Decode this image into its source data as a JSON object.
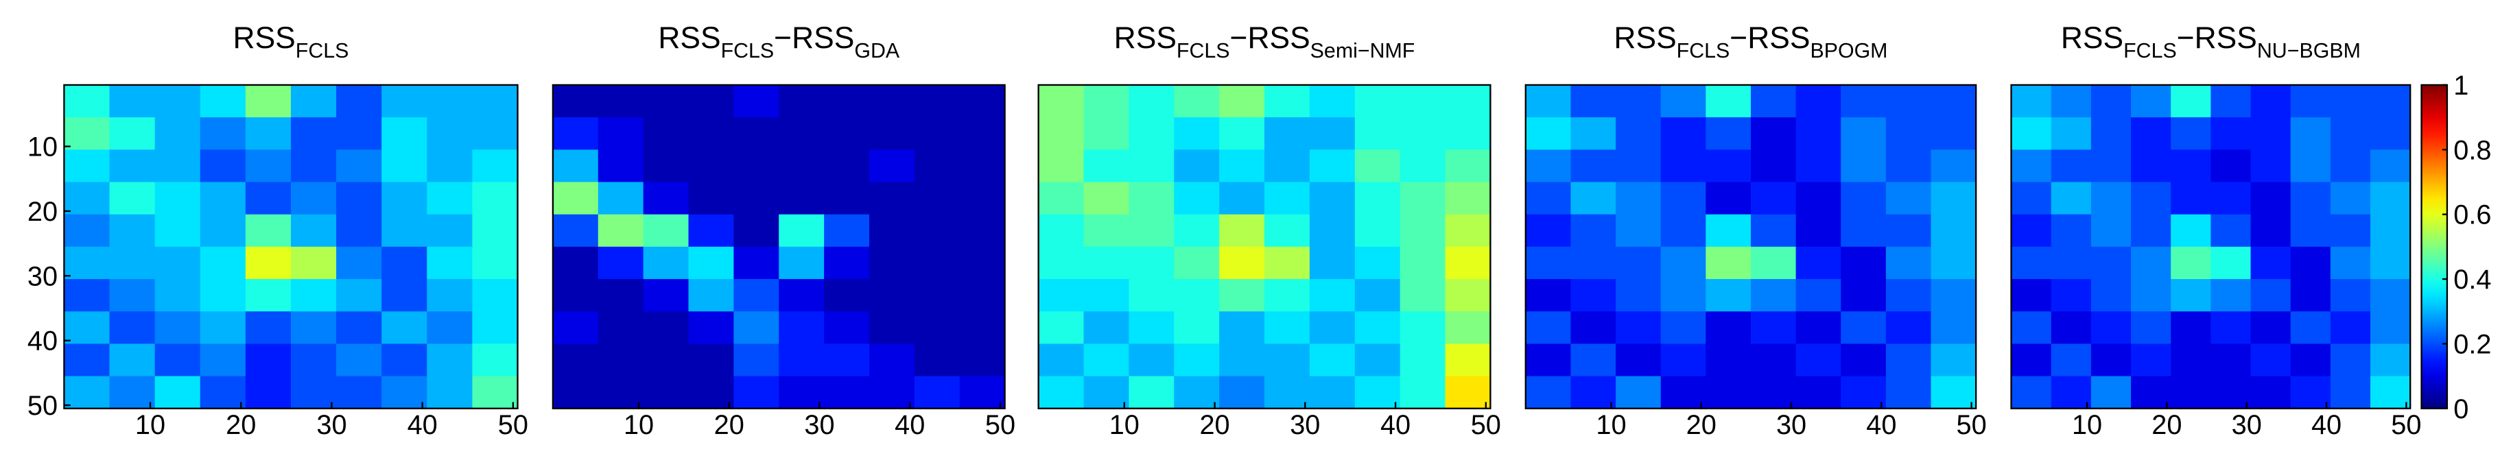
{
  "chart_data": [
    {
      "type": "heatmap",
      "title": [
        [
          "RSS",
          "FCLS"
        ]
      ],
      "x_bins": [
        0.5,
        5.5,
        10.5,
        15.5,
        20.5,
        25.5,
        30.5,
        35.5,
        40.5,
        45.5,
        50.5
      ],
      "y_bins": [
        0.5,
        5.5,
        10.5,
        15.5,
        20.5,
        25.5,
        30.5,
        35.5,
        40.5,
        45.5,
        50.5
      ],
      "z": [
        [
          0.4,
          0.3,
          0.3,
          0.35,
          0.5,
          0.3,
          0.2,
          0.3,
          0.3,
          0.3
        ],
        [
          0.45,
          0.4,
          0.3,
          0.25,
          0.3,
          0.2,
          0.2,
          0.35,
          0.3,
          0.3
        ],
        [
          0.35,
          0.3,
          0.3,
          0.2,
          0.25,
          0.2,
          0.25,
          0.35,
          0.3,
          0.35
        ],
        [
          0.3,
          0.4,
          0.35,
          0.3,
          0.2,
          0.25,
          0.2,
          0.3,
          0.35,
          0.4
        ],
        [
          0.25,
          0.3,
          0.35,
          0.3,
          0.45,
          0.3,
          0.2,
          0.3,
          0.3,
          0.4
        ],
        [
          0.3,
          0.3,
          0.3,
          0.35,
          0.6,
          0.55,
          0.25,
          0.2,
          0.35,
          0.4
        ],
        [
          0.2,
          0.25,
          0.3,
          0.35,
          0.4,
          0.35,
          0.3,
          0.2,
          0.3,
          0.35
        ],
        [
          0.3,
          0.2,
          0.25,
          0.3,
          0.2,
          0.25,
          0.2,
          0.3,
          0.25,
          0.35
        ],
        [
          0.2,
          0.3,
          0.2,
          0.25,
          0.15,
          0.2,
          0.25,
          0.2,
          0.3,
          0.4
        ],
        [
          0.3,
          0.25,
          0.35,
          0.2,
          0.15,
          0.2,
          0.2,
          0.25,
          0.3,
          0.45
        ]
      ],
      "xlim": [
        0.5,
        50.5
      ],
      "ylim": [
        0.5,
        50.5
      ],
      "y_reversed": true,
      "xticks": [
        10,
        20,
        30,
        40,
        50
      ],
      "yticks": [
        10,
        20,
        30,
        40,
        50
      ]
    },
    {
      "type": "heatmap",
      "title": [
        [
          "RSS",
          "FCLS"
        ],
        [
          "−RSS",
          "GDA"
        ]
      ],
      "x_bins": [
        0.5,
        5.5,
        10.5,
        15.5,
        20.5,
        25.5,
        30.5,
        35.5,
        40.5,
        45.5,
        50.5
      ],
      "y_bins": [
        0.5,
        5.5,
        10.5,
        15.5,
        20.5,
        25.5,
        30.5,
        35.5,
        40.5,
        45.5,
        50.5
      ],
      "z": [
        [
          0.05,
          0.05,
          0.05,
          0.05,
          0.1,
          0.05,
          0.05,
          0.05,
          0.05,
          0.05
        ],
        [
          0.15,
          0.1,
          0.05,
          0.05,
          0.05,
          0.05,
          0.05,
          0.05,
          0.05,
          0.05
        ],
        [
          0.3,
          0.1,
          0.05,
          0.05,
          0.05,
          0.05,
          0.05,
          0.1,
          0.05,
          0.05
        ],
        [
          0.5,
          0.3,
          0.1,
          0.05,
          0.05,
          0.05,
          0.05,
          0.05,
          0.05,
          0.05
        ],
        [
          0.2,
          0.5,
          0.45,
          0.15,
          0.05,
          0.4,
          0.2,
          0.05,
          0.05,
          0.05
        ],
        [
          0.05,
          0.15,
          0.3,
          0.35,
          0.1,
          0.3,
          0.1,
          0.05,
          0.05,
          0.05
        ],
        [
          0.05,
          0.05,
          0.1,
          0.3,
          0.2,
          0.1,
          0.05,
          0.05,
          0.05,
          0.05
        ],
        [
          0.1,
          0.05,
          0.05,
          0.1,
          0.25,
          0.15,
          0.1,
          0.05,
          0.05,
          0.05
        ],
        [
          0.05,
          0.05,
          0.05,
          0.05,
          0.2,
          0.15,
          0.15,
          0.1,
          0.05,
          0.05
        ],
        [
          0.05,
          0.05,
          0.05,
          0.05,
          0.15,
          0.1,
          0.1,
          0.1,
          0.15,
          0.1
        ]
      ],
      "xlim": [
        0.5,
        50.5
      ],
      "ylim": [
        0.5,
        50.5
      ],
      "y_reversed": true,
      "xticks": [
        10,
        20,
        30,
        40,
        50
      ]
    },
    {
      "type": "heatmap",
      "title": [
        [
          "RSS",
          "FCLS"
        ],
        [
          "−RSS",
          "Semi−NMF"
        ]
      ],
      "x_bins": [
        0.5,
        5.5,
        10.5,
        15.5,
        20.5,
        25.5,
        30.5,
        35.5,
        40.5,
        45.5,
        50.5
      ],
      "y_bins": [
        0.5,
        5.5,
        10.5,
        15.5,
        20.5,
        25.5,
        30.5,
        35.5,
        40.5,
        45.5,
        50.5
      ],
      "z": [
        [
          0.5,
          0.45,
          0.4,
          0.45,
          0.5,
          0.4,
          0.35,
          0.4,
          0.4,
          0.4
        ],
        [
          0.5,
          0.45,
          0.4,
          0.35,
          0.4,
          0.3,
          0.3,
          0.4,
          0.4,
          0.4
        ],
        [
          0.5,
          0.4,
          0.4,
          0.3,
          0.35,
          0.3,
          0.35,
          0.45,
          0.4,
          0.45
        ],
        [
          0.45,
          0.5,
          0.45,
          0.35,
          0.3,
          0.35,
          0.3,
          0.4,
          0.45,
          0.5
        ],
        [
          0.4,
          0.45,
          0.45,
          0.4,
          0.55,
          0.4,
          0.3,
          0.4,
          0.45,
          0.55
        ],
        [
          0.4,
          0.4,
          0.4,
          0.45,
          0.6,
          0.55,
          0.3,
          0.35,
          0.45,
          0.6
        ],
        [
          0.35,
          0.35,
          0.4,
          0.4,
          0.45,
          0.4,
          0.35,
          0.3,
          0.45,
          0.55
        ],
        [
          0.4,
          0.3,
          0.35,
          0.4,
          0.3,
          0.35,
          0.3,
          0.35,
          0.4,
          0.5
        ],
        [
          0.3,
          0.35,
          0.3,
          0.35,
          0.3,
          0.3,
          0.35,
          0.3,
          0.4,
          0.6
        ],
        [
          0.35,
          0.3,
          0.4,
          0.3,
          0.25,
          0.3,
          0.3,
          0.35,
          0.4,
          0.65
        ]
      ],
      "xlim": [
        0.5,
        50.5
      ],
      "ylim": [
        0.5,
        50.5
      ],
      "y_reversed": true,
      "xticks": [
        10,
        20,
        30,
        40,
        50
      ]
    },
    {
      "type": "heatmap",
      "title": [
        [
          "RSS",
          "FCLS"
        ],
        [
          "−RSS",
          "BPOGM"
        ]
      ],
      "x_bins": [
        0.5,
        5.5,
        10.5,
        15.5,
        20.5,
        25.5,
        30.5,
        35.5,
        40.5,
        45.5,
        50.5
      ],
      "y_bins": [
        0.5,
        5.5,
        10.5,
        15.5,
        20.5,
        25.5,
        30.5,
        35.5,
        40.5,
        45.5,
        50.5
      ],
      "z": [
        [
          0.3,
          0.2,
          0.2,
          0.25,
          0.4,
          0.2,
          0.15,
          0.2,
          0.2,
          0.2
        ],
        [
          0.35,
          0.3,
          0.2,
          0.15,
          0.2,
          0.1,
          0.15,
          0.25,
          0.2,
          0.2
        ],
        [
          0.25,
          0.2,
          0.2,
          0.15,
          0.15,
          0.1,
          0.15,
          0.25,
          0.2,
          0.25
        ],
        [
          0.2,
          0.3,
          0.25,
          0.2,
          0.1,
          0.15,
          0.1,
          0.2,
          0.25,
          0.3
        ],
        [
          0.15,
          0.2,
          0.25,
          0.2,
          0.35,
          0.2,
          0.1,
          0.2,
          0.2,
          0.3
        ],
        [
          0.2,
          0.2,
          0.2,
          0.25,
          0.5,
          0.45,
          0.15,
          0.1,
          0.25,
          0.3
        ],
        [
          0.1,
          0.15,
          0.2,
          0.25,
          0.3,
          0.25,
          0.2,
          0.1,
          0.2,
          0.25
        ],
        [
          0.2,
          0.1,
          0.15,
          0.2,
          0.1,
          0.15,
          0.1,
          0.2,
          0.15,
          0.25
        ],
        [
          0.1,
          0.2,
          0.1,
          0.15,
          0.1,
          0.1,
          0.15,
          0.1,
          0.2,
          0.3
        ],
        [
          0.2,
          0.15,
          0.25,
          0.1,
          0.1,
          0.1,
          0.1,
          0.15,
          0.2,
          0.35
        ]
      ],
      "xlim": [
        0.5,
        50.5
      ],
      "ylim": [
        0.5,
        50.5
      ],
      "y_reversed": true,
      "xticks": [
        10,
        20,
        30,
        40,
        50
      ]
    },
    {
      "type": "heatmap",
      "title": [
        [
          "RSS",
          "FCLS"
        ],
        [
          "−RSS",
          "NU−BGBM"
        ]
      ],
      "x_bins": [
        0.5,
        5.5,
        10.5,
        15.5,
        20.5,
        25.5,
        30.5,
        35.5,
        40.5,
        45.5,
        50.5
      ],
      "y_bins": [
        0.5,
        5.5,
        10.5,
        15.5,
        20.5,
        25.5,
        30.5,
        35.5,
        40.5,
        45.5,
        50.5
      ],
      "z": [
        [
          0.3,
          0.25,
          0.2,
          0.25,
          0.4,
          0.2,
          0.15,
          0.2,
          0.2,
          0.2
        ],
        [
          0.35,
          0.3,
          0.2,
          0.15,
          0.2,
          0.15,
          0.15,
          0.25,
          0.2,
          0.2
        ],
        [
          0.25,
          0.2,
          0.2,
          0.15,
          0.15,
          0.1,
          0.15,
          0.25,
          0.2,
          0.25
        ],
        [
          0.2,
          0.3,
          0.25,
          0.2,
          0.15,
          0.15,
          0.1,
          0.2,
          0.25,
          0.3
        ],
        [
          0.15,
          0.2,
          0.25,
          0.2,
          0.35,
          0.2,
          0.1,
          0.2,
          0.2,
          0.3
        ],
        [
          0.2,
          0.2,
          0.2,
          0.25,
          0.45,
          0.4,
          0.15,
          0.1,
          0.25,
          0.3
        ],
        [
          0.1,
          0.15,
          0.2,
          0.25,
          0.3,
          0.25,
          0.2,
          0.1,
          0.2,
          0.25
        ],
        [
          0.2,
          0.1,
          0.15,
          0.2,
          0.1,
          0.15,
          0.1,
          0.2,
          0.15,
          0.25
        ],
        [
          0.1,
          0.2,
          0.1,
          0.15,
          0.1,
          0.1,
          0.15,
          0.1,
          0.2,
          0.3
        ],
        [
          0.2,
          0.15,
          0.25,
          0.1,
          0.1,
          0.1,
          0.1,
          0.15,
          0.2,
          0.35
        ]
      ],
      "xlim": [
        0.5,
        50.5
      ],
      "ylim": [
        0.5,
        50.5
      ],
      "y_reversed": true,
      "xticks": [
        10,
        20,
        30,
        40,
        50
      ],
      "colorbar": {
        "clim": [
          0,
          1
        ],
        "ticks": [
          0,
          0.2,
          0.4,
          0.6,
          0.8,
          1
        ]
      }
    }
  ]
}
